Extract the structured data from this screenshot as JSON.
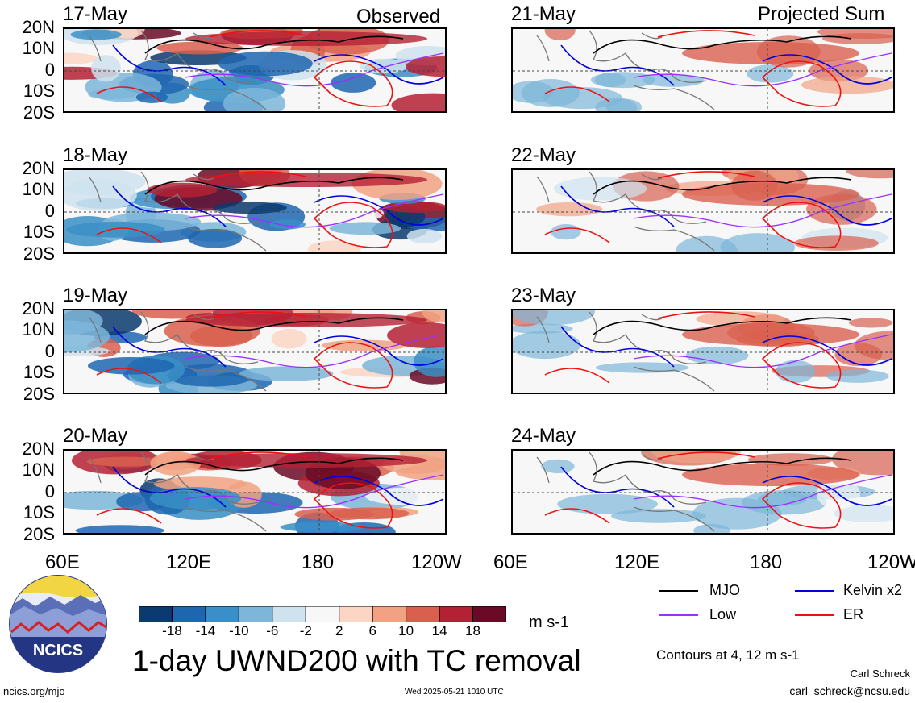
{
  "titles": {
    "observed": "Observed",
    "projected": "Projected Sum"
  },
  "panels_left": [
    {
      "date": "17-May"
    },
    {
      "date": "18-May"
    },
    {
      "date": "19-May"
    },
    {
      "date": "20-May"
    }
  ],
  "panels_right": [
    {
      "date": "21-May"
    },
    {
      "date": "22-May"
    },
    {
      "date": "23-May"
    },
    {
      "date": "24-May"
    }
  ],
  "lat_ticks": [
    "20N",
    "10N",
    "0",
    "10S",
    "20S"
  ],
  "lon_ticks": [
    "60E",
    "120E",
    "180",
    "120W"
  ],
  "lon_ticks_right": [
    "60E",
    "120E",
    "180",
    "120W"
  ],
  "colorbar": {
    "ticks": [
      "-18",
      "-14",
      "-10",
      "-6",
      "-2",
      "2",
      "6",
      "10",
      "14",
      "18"
    ],
    "colors": [
      "#0b3a6e",
      "#1f66b0",
      "#3a8fc6",
      "#7db6d9",
      "#cfe3ef",
      "#f7f7f7",
      "#fbd6c4",
      "#f1a283",
      "#d9604f",
      "#b52134",
      "#6a0a26"
    ],
    "units": "m s-1"
  },
  "title": "1-day UWND200 with TC removal",
  "legend": {
    "items": [
      {
        "label": "MJO",
        "color": "#000000"
      },
      {
        "label": "Kelvin x2",
        "color": "#0000dd"
      },
      {
        "label": "Low",
        "color": "#9b30ff"
      },
      {
        "label": "ER",
        "color": "#ee1111"
      }
    ],
    "contours_note": "Contours at 4, 12 m s-1"
  },
  "credits": {
    "author": "Carl Schreck",
    "email": "carl_schreck@ncsu.edu",
    "url": "ncics.org/mjo",
    "timestamp": "Wed 2025-05-21 1010 UTC",
    "logo_text": "NCICS"
  }
}
